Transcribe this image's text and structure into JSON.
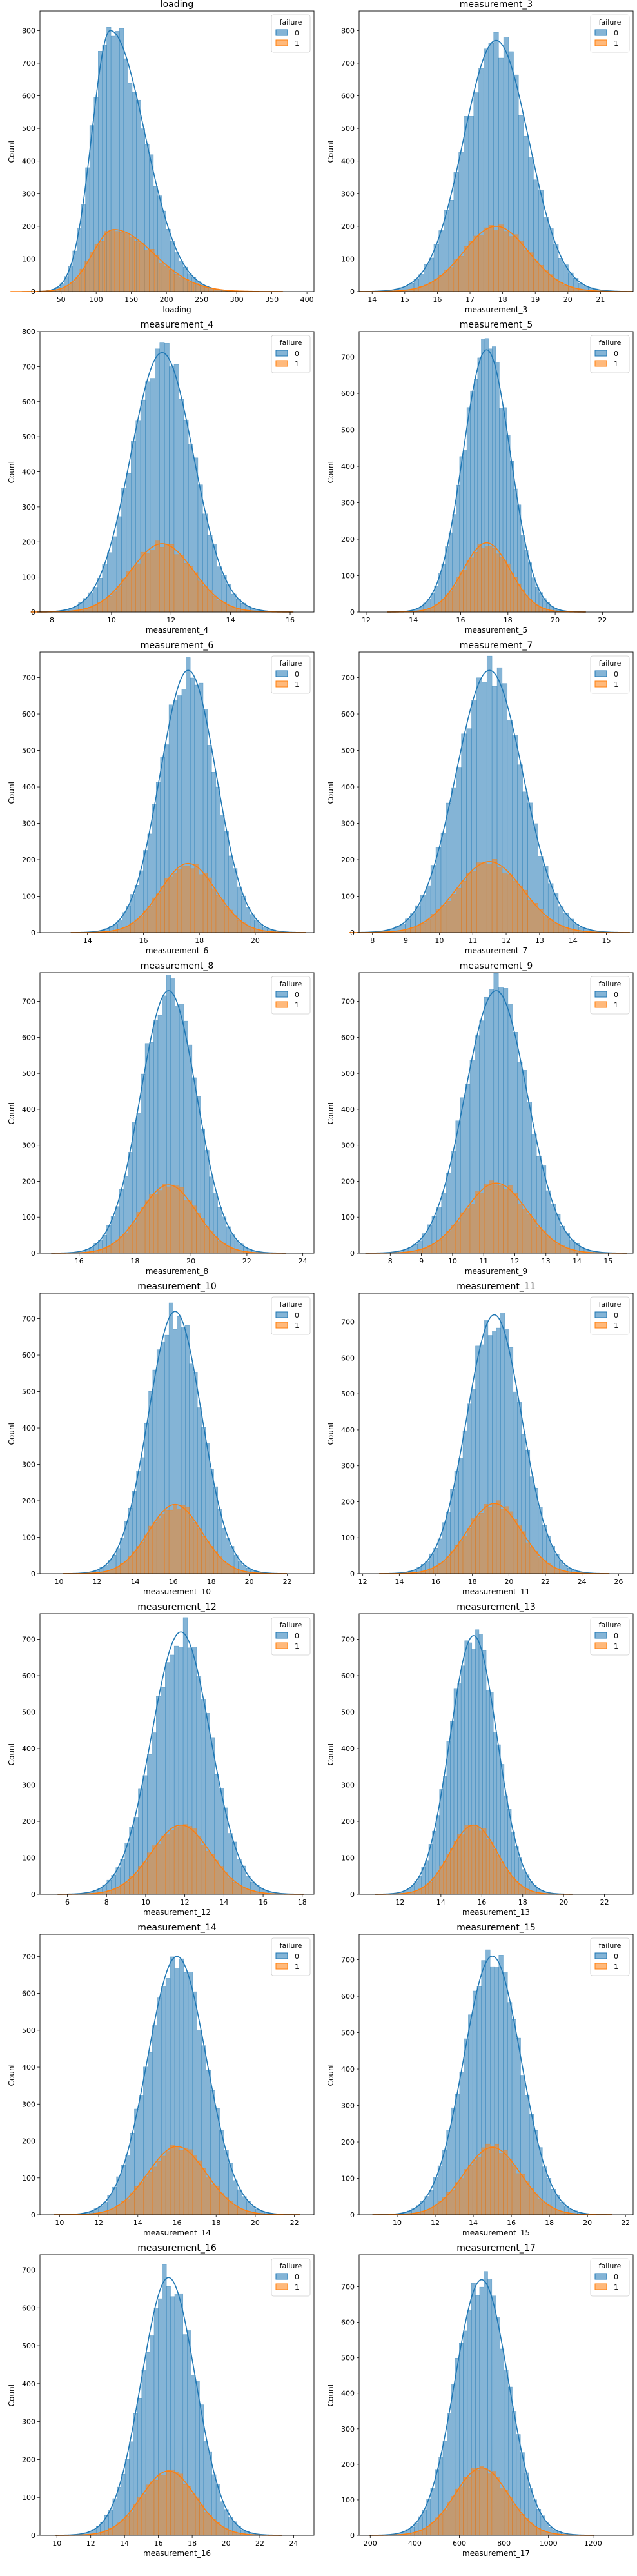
{
  "legend": {
    "title": "failure",
    "labels": [
      "0",
      "1"
    ]
  },
  "colors": {
    "series0": "#1f77b4",
    "series1": "#ff7f0e"
  },
  "chart_data": [
    {
      "type": "histogram",
      "title": "loading",
      "xlabel": "loading",
      "ylabel": "Count",
      "legend_placement": "top-right",
      "xlim": [
        20,
        410
      ],
      "ylim": [
        0,
        860
      ],
      "xticks": [
        50,
        100,
        150,
        200,
        250,
        300,
        350,
        400
      ],
      "yticks": [
        0,
        100,
        200,
        300,
        400,
        500,
        600,
        700,
        800
      ],
      "series": [
        {
          "name": "0",
          "mean": 120,
          "sd": 30,
          "peak": 800,
          "skew": 0.32
        },
        {
          "name": "1",
          "mean": 125,
          "sd": 35,
          "peak": 190,
          "skew": 0.32
        }
      ]
    },
    {
      "type": "histogram",
      "title": "measurement_3",
      "xlabel": "measurement_3",
      "ylabel": "Count",
      "legend_placement": "top-right",
      "xlim": [
        13.6,
        22.0
      ],
      "ylim": [
        0,
        860
      ],
      "xticks": [
        14,
        15,
        16,
        17,
        18,
        19,
        20,
        21
      ],
      "yticks": [
        0,
        100,
        200,
        300,
        400,
        500,
        600,
        700,
        800
      ],
      "series": [
        {
          "name": "0",
          "mean": 17.8,
          "sd": 1.0,
          "peak": 770,
          "skew": 0
        },
        {
          "name": "1",
          "mean": 17.8,
          "sd": 1.0,
          "peak": 200,
          "skew": 0
        }
      ]
    },
    {
      "type": "histogram",
      "title": "measurement_4",
      "xlabel": "measurement_4",
      "ylabel": "Count",
      "legend_placement": "top-right",
      "xlim": [
        7.6,
        16.8
      ],
      "ylim": [
        0,
        800
      ],
      "xticks": [
        8,
        10,
        12,
        14,
        16
      ],
      "yticks": [
        0,
        100,
        200,
        300,
        400,
        500,
        600,
        700,
        800
      ],
      "series": [
        {
          "name": "0",
          "mean": 11.7,
          "sd": 1.05,
          "peak": 740,
          "skew": 0
        },
        {
          "name": "1",
          "mean": 11.7,
          "sd": 1.05,
          "peak": 195,
          "skew": 0
        }
      ]
    },
    {
      "type": "histogram",
      "title": "measurement_5",
      "xlabel": "measurement_5",
      "ylabel": "Count",
      "legend_placement": "top-right",
      "xlim": [
        11.7,
        23.3
      ],
      "ylim": [
        0,
        770
      ],
      "xticks": [
        12,
        14,
        16,
        18,
        20,
        22
      ],
      "yticks": [
        0,
        100,
        200,
        300,
        400,
        500,
        600,
        700
      ],
      "series": [
        {
          "name": "0",
          "mean": 17.1,
          "sd": 1.0,
          "peak": 720,
          "skew": 0
        },
        {
          "name": "1",
          "mean": 17.1,
          "sd": 1.0,
          "peak": 190,
          "skew": 0
        }
      ]
    },
    {
      "type": "histogram",
      "title": "measurement_6",
      "xlabel": "measurement_6",
      "ylabel": "Count",
      "legend_placement": "top-right",
      "xlim": [
        12.3,
        22.1
      ],
      "ylim": [
        0,
        770
      ],
      "xticks": [
        14,
        16,
        18,
        20
      ],
      "yticks": [
        0,
        100,
        200,
        300,
        400,
        500,
        600,
        700
      ],
      "series": [
        {
          "name": "0",
          "mean": 17.6,
          "sd": 1.0,
          "peak": 720,
          "skew": 0
        },
        {
          "name": "1",
          "mean": 17.6,
          "sd": 1.0,
          "peak": 190,
          "skew": 0
        }
      ]
    },
    {
      "type": "histogram",
      "title": "measurement_7",
      "xlabel": "measurement_7",
      "ylabel": "Count",
      "legend_placement": "top-right",
      "xlim": [
        7.6,
        15.8
      ],
      "ylim": [
        0,
        770
      ],
      "xticks": [
        8,
        9,
        10,
        11,
        12,
        13,
        14,
        15
      ],
      "yticks": [
        0,
        100,
        200,
        300,
        400,
        500,
        600,
        700
      ],
      "series": [
        {
          "name": "0",
          "mean": 11.5,
          "sd": 1.0,
          "peak": 720,
          "skew": 0
        },
        {
          "name": "1",
          "mean": 11.5,
          "sd": 1.0,
          "peak": 195,
          "skew": 0
        }
      ]
    },
    {
      "type": "histogram",
      "title": "measurement_8",
      "xlabel": "measurement_8",
      "ylabel": "Count",
      "legend_placement": "top-right",
      "xlim": [
        14.6,
        24.4
      ],
      "ylim": [
        0,
        780
      ],
      "xticks": [
        16,
        18,
        20,
        22,
        24
      ],
      "yticks": [
        0,
        100,
        200,
        300,
        400,
        500,
        600,
        700
      ],
      "series": [
        {
          "name": "0",
          "mean": 19.2,
          "sd": 1.0,
          "peak": 730,
          "skew": 0
        },
        {
          "name": "1",
          "mean": 19.2,
          "sd": 1.0,
          "peak": 190,
          "skew": 0
        }
      ]
    },
    {
      "type": "histogram",
      "title": "measurement_9",
      "xlabel": "measurement_9",
      "ylabel": "Count",
      "legend_placement": "top-right",
      "xlim": [
        7.0,
        15.8
      ],
      "ylim": [
        0,
        780
      ],
      "xticks": [
        8,
        9,
        10,
        11,
        12,
        13,
        14,
        15
      ],
      "yticks": [
        0,
        100,
        200,
        300,
        400,
        500,
        600,
        700
      ],
      "series": [
        {
          "name": "0",
          "mean": 11.4,
          "sd": 1.0,
          "peak": 730,
          "skew": 0
        },
        {
          "name": "1",
          "mean": 11.4,
          "sd": 1.0,
          "peak": 195,
          "skew": 0
        }
      ]
    },
    {
      "type": "histogram",
      "title": "measurement_10",
      "xlabel": "measurement_10",
      "ylabel": "Count",
      "legend_placement": "top-right",
      "xlim": [
        9.0,
        23.4
      ],
      "ylim": [
        0,
        770
      ],
      "xticks": [
        10,
        12,
        14,
        16,
        18,
        20,
        22
      ],
      "yticks": [
        0,
        100,
        200,
        300,
        400,
        500,
        600,
        700
      ],
      "series": [
        {
          "name": "0",
          "mean": 16.1,
          "sd": 1.4,
          "peak": 720,
          "skew": 0
        },
        {
          "name": "1",
          "mean": 16.1,
          "sd": 1.4,
          "peak": 190,
          "skew": 0
        }
      ]
    },
    {
      "type": "histogram",
      "title": "measurement_11",
      "xlabel": "measurement_11",
      "ylabel": "Count",
      "legend_placement": "top-right",
      "xlim": [
        11.8,
        26.8
      ],
      "ylim": [
        0,
        780
      ],
      "xticks": [
        12,
        14,
        16,
        18,
        20,
        22,
        24,
        26
      ],
      "yticks": [
        0,
        100,
        200,
        300,
        400,
        500,
        600,
        700
      ],
      "series": [
        {
          "name": "0",
          "mean": 19.2,
          "sd": 1.5,
          "peak": 720,
          "skew": 0
        },
        {
          "name": "1",
          "mean": 19.2,
          "sd": 1.5,
          "peak": 195,
          "skew": 0
        }
      ]
    },
    {
      "type": "histogram",
      "title": "measurement_12",
      "xlabel": "measurement_12",
      "ylabel": "Count",
      "legend_placement": "top-right",
      "xlim": [
        4.6,
        18.6
      ],
      "ylim": [
        0,
        770
      ],
      "xticks": [
        6,
        8,
        10,
        12,
        14,
        16,
        18
      ],
      "yticks": [
        0,
        100,
        200,
        300,
        400,
        500,
        600,
        700
      ],
      "series": [
        {
          "name": "0",
          "mean": 11.8,
          "sd": 1.5,
          "peak": 720,
          "skew": 0
        },
        {
          "name": "1",
          "mean": 11.8,
          "sd": 1.5,
          "peak": 190,
          "skew": 0
        }
      ]
    },
    {
      "type": "histogram",
      "title": "measurement_13",
      "xlabel": "measurement_13",
      "ylabel": "Count",
      "legend_placement": "top-right",
      "xlim": [
        10.0,
        23.4
      ],
      "ylim": [
        0,
        770
      ],
      "xticks": [
        12,
        14,
        16,
        18,
        20,
        22
      ],
      "yticks": [
        0,
        100,
        200,
        300,
        400,
        500,
        600,
        700
      ],
      "series": [
        {
          "name": "0",
          "mean": 15.6,
          "sd": 1.15,
          "peak": 710,
          "skew": 0
        },
        {
          "name": "1",
          "mean": 15.6,
          "sd": 1.15,
          "peak": 190,
          "skew": 0
        }
      ]
    },
    {
      "type": "histogram",
      "title": "measurement_14",
      "xlabel": "measurement_14",
      "ylabel": "Count",
      "legend_placement": "top-right",
      "xlim": [
        9.0,
        23.0
      ],
      "ylim": [
        0,
        760
      ],
      "xticks": [
        10,
        12,
        14,
        16,
        18,
        20,
        22
      ],
      "yticks": [
        0,
        100,
        200,
        300,
        400,
        500,
        600,
        700
      ],
      "series": [
        {
          "name": "0",
          "mean": 16.0,
          "sd": 1.5,
          "peak": 700,
          "skew": 0
        },
        {
          "name": "1",
          "mean": 16.0,
          "sd": 1.5,
          "peak": 185,
          "skew": 0
        }
      ]
    },
    {
      "type": "histogram",
      "title": "measurement_15",
      "xlabel": "measurement_15",
      "ylabel": "Count",
      "legend_placement": "top-right",
      "xlim": [
        8.0,
        22.4
      ],
      "ylim": [
        0,
        770
      ],
      "xticks": [
        10,
        12,
        14,
        16,
        18,
        20,
        22
      ],
      "yticks": [
        0,
        100,
        200,
        300,
        400,
        500,
        600,
        700
      ],
      "series": [
        {
          "name": "0",
          "mean": 15.0,
          "sd": 1.5,
          "peak": 710,
          "skew": 0
        },
        {
          "name": "1",
          "mean": 15.0,
          "sd": 1.5,
          "peak": 185,
          "skew": 0
        }
      ]
    },
    {
      "type": "histogram",
      "title": "measurement_16",
      "xlabel": "measurement_16",
      "ylabel": "Count",
      "legend_placement": "top-right",
      "xlim": [
        9.0,
        25.2
      ],
      "ylim": [
        0,
        740
      ],
      "xticks": [
        10,
        12,
        14,
        16,
        18,
        20,
        22,
        24
      ],
      "yticks": [
        0,
        100,
        200,
        300,
        400,
        500,
        600,
        700
      ],
      "series": [
        {
          "name": "0",
          "mean": 16.6,
          "sd": 1.6,
          "peak": 680,
          "skew": 0
        },
        {
          "name": "1",
          "mean": 16.6,
          "sd": 1.6,
          "peak": 170,
          "skew": 0
        }
      ]
    },
    {
      "type": "histogram",
      "title": "measurement_17",
      "xlabel": "measurement_17",
      "ylabel": "Count",
      "legend_placement": "top-right",
      "xlim": [
        150,
        1380
      ],
      "ylim": [
        0,
        790
      ],
      "xticks": [
        200,
        400,
        600,
        800,
        1000,
        1200
      ],
      "yticks": [
        0,
        100,
        200,
        300,
        400,
        500,
        600,
        700
      ],
      "series": [
        {
          "name": "0",
          "mean": 700,
          "sd": 120,
          "peak": 720,
          "skew": 0
        },
        {
          "name": "1",
          "mean": 700,
          "sd": 120,
          "peak": 190,
          "skew": 0
        }
      ]
    }
  ]
}
